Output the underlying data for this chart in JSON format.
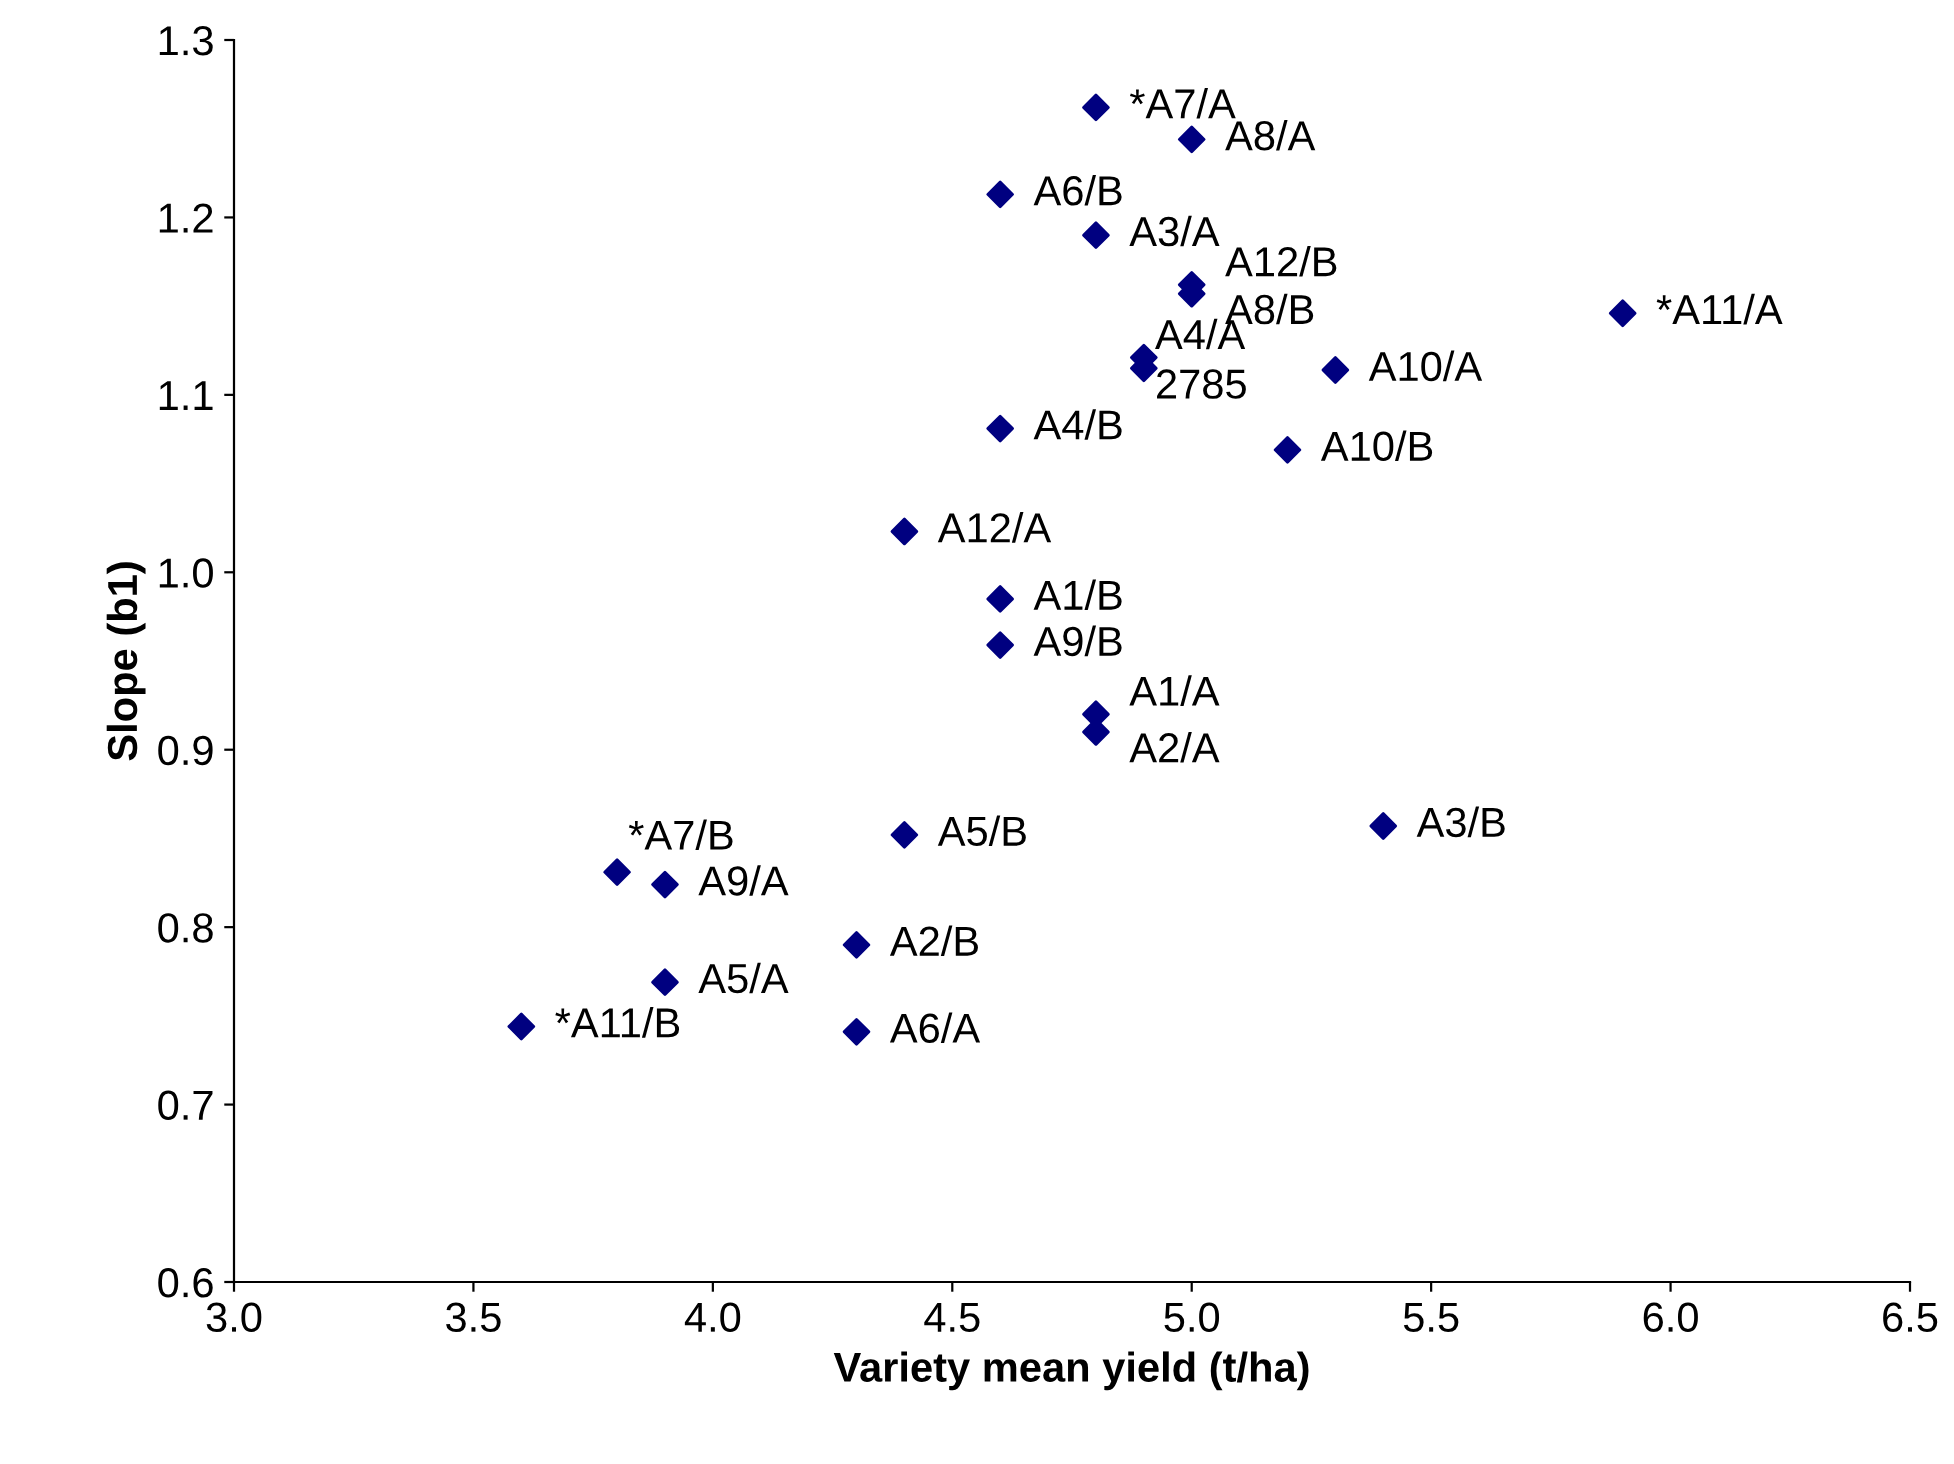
{
  "chart_data": {
    "type": "scatter",
    "xlabel": "Variety mean yield (t/ha)",
    "ylabel": "Slope (b1)",
    "series": [
      {
        "color": "#000080",
        "x": [
          4.8,
          5.0,
          4.6,
          4.8,
          5.0,
          5.0,
          5.9,
          4.9,
          4.9,
          5.3,
          4.6,
          5.2,
          4.4,
          4.6,
          4.6,
          4.8,
          4.8,
          5.4,
          4.4,
          3.8,
          3.9,
          4.3,
          3.9,
          3.6,
          4.3
        ],
        "values": [
          1.262,
          1.244,
          1.213,
          1.19,
          1.162,
          1.157,
          1.146,
          1.121,
          1.115,
          1.114,
          1.081,
          1.069,
          1.023,
          0.985,
          0.959,
          0.92,
          0.91,
          0.857,
          0.852,
          0.831,
          0.824,
          0.79,
          0.769,
          0.744,
          0.741
        ]
      }
    ],
    "annotations": [
      {
        "text": "*A7/A",
        "x": 4.8,
        "y": 1.262
      },
      {
        "text": "A8/A",
        "x": 5.0,
        "y": 1.244
      },
      {
        "text": "A6/B",
        "x": 4.6,
        "y": 1.213
      },
      {
        "text": "A3/A",
        "x": 4.8,
        "y": 1.19
      },
      {
        "text": "A12/B",
        "x": 5.0,
        "y": 1.162
      },
      {
        "text": "A8/B",
        "x": 5.0,
        "y": 1.157
      },
      {
        "text": "*A11/A",
        "x": 5.9,
        "y": 1.146
      },
      {
        "text": "A4/A",
        "x": 4.9,
        "y": 1.121
      },
      {
        "text": "2785",
        "x": 4.9,
        "y": 1.115
      },
      {
        "text": "A10/A",
        "x": 5.3,
        "y": 1.114
      },
      {
        "text": "A4/B",
        "x": 4.6,
        "y": 1.081
      },
      {
        "text": "A10/B",
        "x": 5.2,
        "y": 1.069
      },
      {
        "text": "A12/A",
        "x": 4.4,
        "y": 1.023
      },
      {
        "text": "A1/B",
        "x": 4.6,
        "y": 0.985
      },
      {
        "text": "A9/B",
        "x": 4.6,
        "y": 0.959
      },
      {
        "text": "A1/A",
        "x": 4.8,
        "y": 0.92
      },
      {
        "text": "A2/A",
        "x": 4.8,
        "y": 0.91
      },
      {
        "text": "A3/B",
        "x": 5.4,
        "y": 0.857
      },
      {
        "text": "A5/B",
        "x": 4.4,
        "y": 0.852
      },
      {
        "text": "*A7/B",
        "x": 3.8,
        "y": 0.831
      },
      {
        "text": "A9/A",
        "x": 3.9,
        "y": 0.824
      },
      {
        "text": "A2/B",
        "x": 4.3,
        "y": 0.79
      },
      {
        "text": "A5/A",
        "x": 3.9,
        "y": 0.769
      },
      {
        "text": "*A11/B",
        "x": 3.6,
        "y": 0.744
      },
      {
        "text": "A6/A",
        "x": 4.3,
        "y": 0.741
      }
    ],
    "xlim": [
      3.0,
      6.5
    ],
    "xticks": [
      {
        "value": 3.0,
        "label": "3.0"
      },
      {
        "value": 3.5,
        "label": "3.5"
      },
      {
        "value": 4.0,
        "label": "4.0"
      },
      {
        "value": 4.5,
        "label": "4.5"
      },
      {
        "value": 5.0,
        "label": "5.0"
      },
      {
        "value": 5.5,
        "label": "5.5"
      },
      {
        "value": 6.0,
        "label": "6.0"
      },
      {
        "value": 6.5,
        "label": "6.5"
      }
    ],
    "ylim": [
      0.6,
      1.3
    ],
    "yticks": [
      {
        "value": 0.6,
        "label": "0.6"
      },
      {
        "value": 0.7,
        "label": "0.7"
      },
      {
        "value": 0.8,
        "label": "0.8"
      },
      {
        "value": 0.9,
        "label": "0.9"
      },
      {
        "value": 1.0,
        "label": "1.0"
      },
      {
        "value": 1.1,
        "label": "1.1"
      },
      {
        "value": 1.2,
        "label": "1.2"
      },
      {
        "value": 1.3,
        "label": "1.3"
      }
    ],
    "marker": "diamond",
    "grid": false,
    "legend": false
  }
}
